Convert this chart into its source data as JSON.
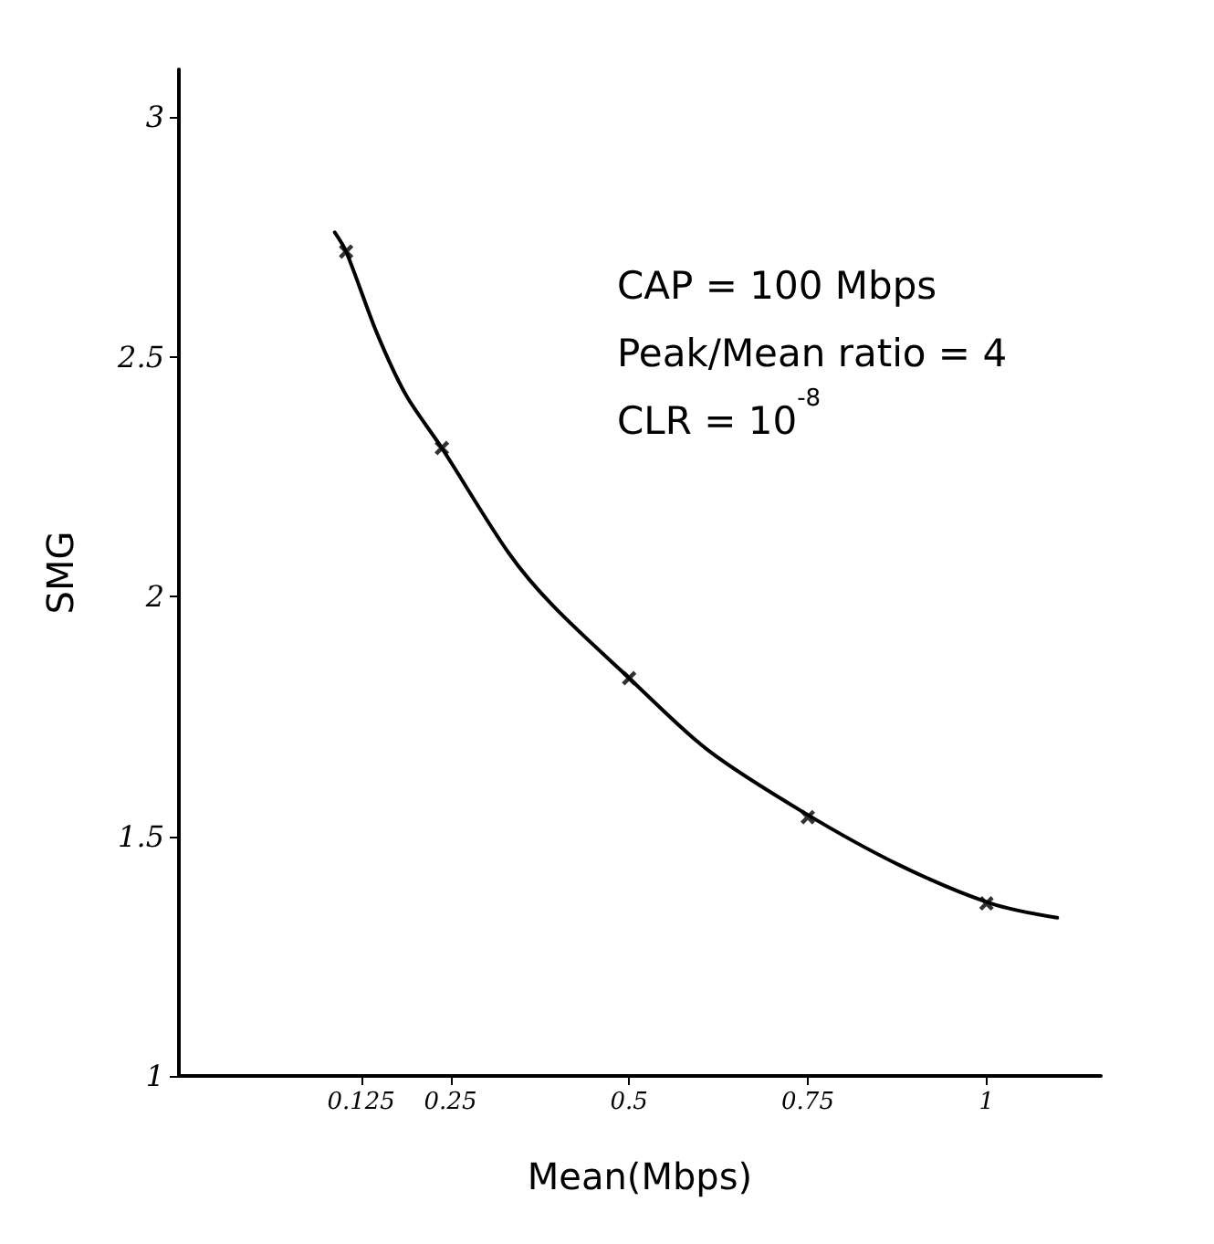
{
  "chart_data": {
    "type": "line",
    "xlabel": "Mean(Mbps)",
    "ylabel": "SMG",
    "xlim": [
      -0.13,
      1.16
    ],
    "xticks": [
      0.125,
      0.25,
      0.5,
      0.75,
      1
    ],
    "ylim": [
      1,
      3.1
    ],
    "yticks": [
      1,
      1.5,
      2,
      2.5,
      3
    ],
    "grid": false,
    "marker": "none",
    "line_style": "solid",
    "series": [
      {
        "color": "#000000",
        "x": [
          0.088,
          0.104,
          0.147,
          0.188,
          0.238,
          0.332,
          0.394,
          0.5,
          0.61,
          0.744,
          0.878,
          1.006,
          1.099
        ],
        "values": [
          2.76,
          2.72,
          2.55,
          2.42,
          2.31,
          2.09,
          1.98,
          1.83,
          1.68,
          1.55,
          1.44,
          1.36,
          1.33
        ]
      },
      {
        "type": "scatter",
        "marker": "cross",
        "color": "#000000",
        "x": [
          0.104,
          0.238,
          0.5,
          0.75,
          1.0
        ],
        "values": [
          2.72,
          2.31,
          1.83,
          1.54,
          1.36
        ]
      }
    ],
    "annotations": [
      "CAP = 100 Mbps",
      "Peak/Mean ratio = 4",
      "CLR = 10$^{-8}$"
    ]
  }
}
